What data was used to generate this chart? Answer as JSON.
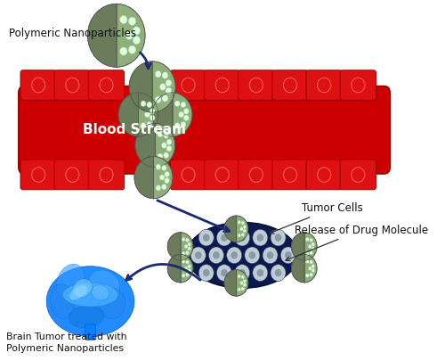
{
  "bg_color": "#ffffff",
  "blood_stream_color": "#cc0000",
  "cell_color": "#dd1111",
  "nanoparticle_outer": "#6b7c5a",
  "nanoparticle_inner": "#8faf7a",
  "nanoparticle_dots": "#cceecc",
  "tumor_dark": "#0a1a50",
  "tumor_cell_light": "#c0ccd4",
  "tumor_cell_dark": "#8899aa",
  "arrow_color": "#1a2a6e",
  "label_polymeric": "Polymeric Nanoparticles",
  "label_bloodstream": "Blood Stream",
  "label_tumor_cells": "Tumor Cells",
  "label_release": "Release of Drug Molecule",
  "label_brain": "Brain Tumor treated with\nPolymeric Nanoparticles",
  "figsize": [
    5.0,
    4.05
  ],
  "dpi": 100
}
